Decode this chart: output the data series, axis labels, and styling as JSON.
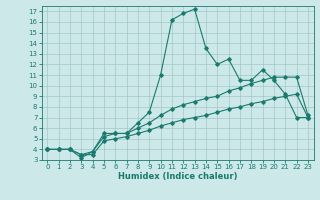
{
  "xlabel": "Humidex (Indice chaleur)",
  "bg_color": "#cce8e8",
  "line_color": "#1a7a6e",
  "xlim": [
    -0.5,
    23.5
  ],
  "ylim": [
    3,
    17.5
  ],
  "xticks": [
    0,
    1,
    2,
    3,
    4,
    5,
    6,
    7,
    8,
    9,
    10,
    11,
    12,
    13,
    14,
    15,
    16,
    17,
    18,
    19,
    20,
    21,
    22,
    23
  ],
  "yticks": [
    3,
    4,
    5,
    6,
    7,
    8,
    9,
    10,
    11,
    12,
    13,
    14,
    15,
    16,
    17
  ],
  "line1_x": [
    0,
    1,
    2,
    3,
    4,
    5,
    6,
    7,
    8,
    9,
    10,
    11,
    12,
    13,
    14,
    15,
    16,
    17,
    18,
    19,
    20,
    21,
    22,
    23
  ],
  "line1_y": [
    4.0,
    4.0,
    4.0,
    3.2,
    3.8,
    5.5,
    5.5,
    5.5,
    6.5,
    7.5,
    11.0,
    16.2,
    16.8,
    17.2,
    13.5,
    12.0,
    12.5,
    10.5,
    10.5,
    11.5,
    10.5,
    9.2,
    7.0,
    7.0
  ],
  "line2_x": [
    0,
    1,
    2,
    3,
    4,
    5,
    6,
    7,
    8,
    9,
    10,
    11,
    12,
    13,
    14,
    15,
    16,
    17,
    18,
    19,
    20,
    21,
    22,
    23
  ],
  "line2_y": [
    4.0,
    4.0,
    4.0,
    3.5,
    3.8,
    5.2,
    5.5,
    5.5,
    6.0,
    6.5,
    7.2,
    7.8,
    8.2,
    8.5,
    8.8,
    9.0,
    9.5,
    9.8,
    10.2,
    10.5,
    10.8,
    10.8,
    10.8,
    7.2
  ],
  "line3_x": [
    0,
    1,
    2,
    3,
    4,
    5,
    6,
    7,
    8,
    9,
    10,
    11,
    12,
    13,
    14,
    15,
    16,
    17,
    18,
    19,
    20,
    21,
    22,
    23
  ],
  "line3_y": [
    4.0,
    4.0,
    4.0,
    3.5,
    3.5,
    4.8,
    5.0,
    5.2,
    5.5,
    5.8,
    6.2,
    6.5,
    6.8,
    7.0,
    7.2,
    7.5,
    7.8,
    8.0,
    8.3,
    8.5,
    8.8,
    9.0,
    9.2,
    7.0
  ]
}
